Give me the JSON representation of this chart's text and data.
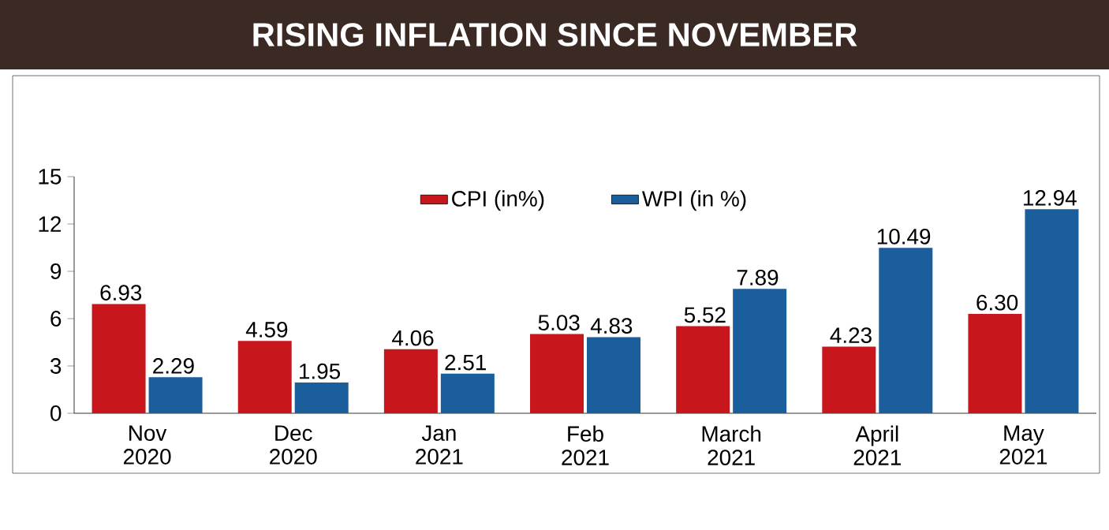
{
  "chart_data": {
    "type": "bar",
    "title": "RISING INFLATION SINCE NOVEMBER",
    "categories": [
      "Nov 2020",
      "Dec 2020",
      "Jan 2021",
      "Feb 2021",
      "March 2021",
      "April 2021",
      "May 2021"
    ],
    "series": [
      {
        "name": "CPI (in%)",
        "color": "#c8161d",
        "values": [
          6.93,
          4.59,
          4.06,
          5.03,
          5.52,
          4.23,
          6.3
        ],
        "value_labels": [
          "6.93",
          "4.59",
          "4.06",
          "5.03",
          "5.52",
          "4.23",
          "6.30"
        ]
      },
      {
        "name": "WPI (in %)",
        "color": "#1b5e9c",
        "values": [
          2.29,
          1.95,
          2.51,
          4.83,
          7.89,
          10.49,
          12.94
        ],
        "value_labels": [
          "2.29",
          "1.95",
          "2.51",
          "4.83",
          "7.89",
          "10.49",
          "12.94"
        ]
      }
    ],
    "ylim": [
      0,
      15
    ],
    "yticks": [
      0,
      3,
      6,
      9,
      12,
      15
    ],
    "legend": "top",
    "grid": false
  }
}
